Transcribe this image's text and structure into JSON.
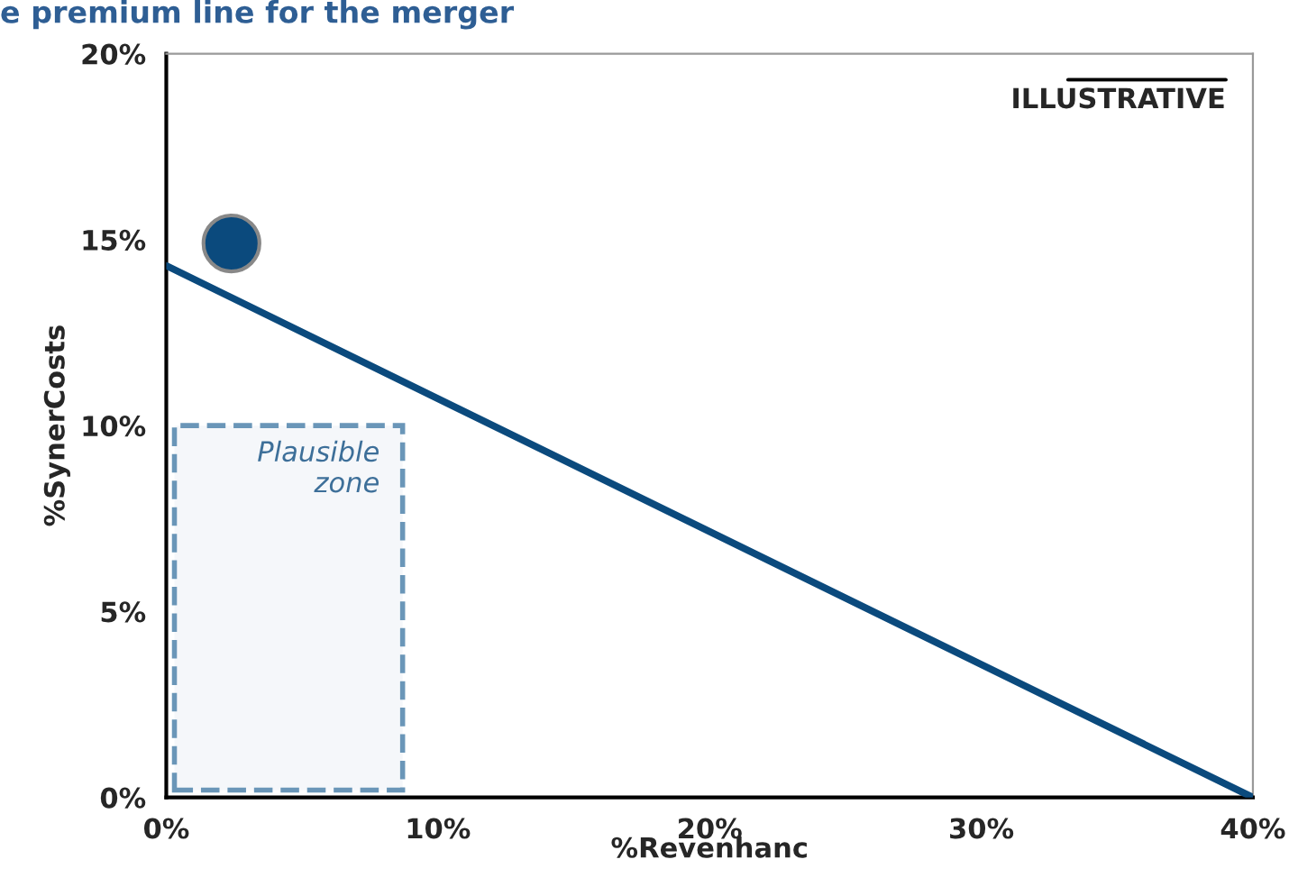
{
  "chart_data": {
    "type": "line",
    "title": "e premium line for the merger",
    "xlabel": "%Revenhanc",
    "ylabel": "%SynerCosts",
    "series": [
      {
        "x": [
          0,
          40
        ],
        "values": [
          14.3,
          0
        ],
        "color": "#0b4a7d",
        "marker": "none",
        "line_style": "solid"
      },
      {
        "type": "scatter",
        "x": [
          2.4
        ],
        "values": [
          14.9
        ],
        "color": "#0b4a7d",
        "marker": "circle"
      }
    ],
    "bands": [
      {
        "axis": "x",
        "from": 0.3,
        "to": 8.7,
        "label": "Plausible zone",
        "color": "#6a96b8"
      }
    ],
    "annotations": [
      "ILLUSTRATIVE"
    ],
    "xlim": [
      0,
      40
    ],
    "xticks": [
      {
        "value": 0,
        "label": "0%"
      },
      {
        "value": 10,
        "label": "10%"
      },
      {
        "value": 20,
        "label": "20%"
      },
      {
        "value": 30,
        "label": "30%"
      },
      {
        "value": 40,
        "label": "40%"
      }
    ],
    "ylim": [
      0,
      20
    ],
    "yticks": [
      {
        "value": 0,
        "label": "0%"
      },
      {
        "value": 5,
        "label": "5%"
      },
      {
        "value": 10,
        "label": "10%"
      },
      {
        "value": 15,
        "label": "15%"
      },
      {
        "value": 20,
        "label": "20%"
      }
    ],
    "grid": false,
    "legend": false
  }
}
